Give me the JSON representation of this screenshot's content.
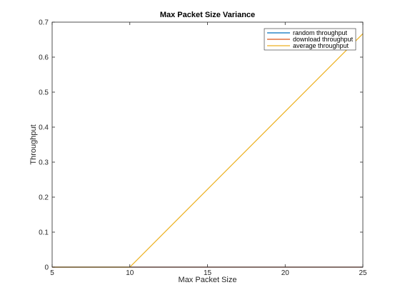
{
  "chart_data": {
    "type": "line",
    "title": "Max Packet Size Variance",
    "xlabel": "Max Packet Size",
    "ylabel": "Throughput",
    "xlim": [
      5,
      25
    ],
    "ylim": [
      0,
      0.7
    ],
    "xticks": [
      5,
      10,
      15,
      20,
      25
    ],
    "yticks": [
      0,
      0.1,
      0.2,
      0.3,
      0.4,
      0.5,
      0.6,
      0.7
    ],
    "grid": false,
    "legend_position": "top-right",
    "series": [
      {
        "name": "random throughput",
        "color": "#0072bd",
        "x": [
          5,
          25
        ],
        "y": [
          0,
          0
        ]
      },
      {
        "name": "download throughput",
        "color": "#d95319",
        "x": [
          5,
          25
        ],
        "y": [
          0,
          0
        ]
      },
      {
        "name": "average throughput",
        "color": "#edb120",
        "x": [
          5,
          10,
          25
        ],
        "y": [
          0,
          0,
          0.667
        ]
      }
    ]
  }
}
